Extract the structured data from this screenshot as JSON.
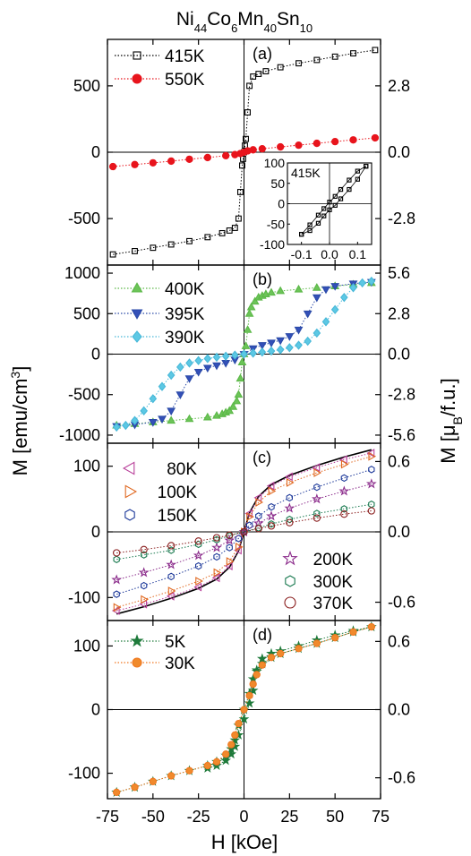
{
  "figure": {
    "title_parts": [
      {
        "t": "Ni",
        "sub": false
      },
      {
        "t": "44",
        "sub": true
      },
      {
        "t": "Co",
        "sub": false
      },
      {
        "t": "6",
        "sub": true
      },
      {
        "t": "Mn",
        "sub": false
      },
      {
        "t": "40",
        "sub": true
      },
      {
        "t": "Sn",
        "sub": false
      },
      {
        "t": "10",
        "sub": true
      }
    ],
    "xlabel": "H [kOe]",
    "ylabel_left": "M [emu/cm",
    "ylabel_left_sup": "3",
    "ylabel_left_end": "]",
    "ylabel_right": "M [μ",
    "ylabel_right_sub": "B",
    "ylabel_right_end": "/f.u.]",
    "xticks": [
      -75,
      -50,
      -25,
      0,
      25,
      50,
      75
    ],
    "xtick_labels": [
      "-75",
      "-50",
      "-25",
      "0",
      "25",
      "50",
      "75"
    ]
  },
  "chart_data": [
    {
      "type": "line",
      "panel_label": "(a)",
      "xlim": [
        -75,
        75
      ],
      "ylim": [
        -850,
        850
      ],
      "left_ticks": [
        -500,
        0,
        500
      ],
      "left_tick_labels": [
        "-500",
        "0",
        "500"
      ],
      "right_ticks": [
        -2.8,
        0.0,
        2.8
      ],
      "right_tick_labels": [
        "-2.8",
        "0.0",
        "2.8"
      ],
      "right_scale": 0.0056,
      "series": [
        {
          "name": "415K",
          "marker": "square",
          "color": "#000000",
          "fill": "none",
          "x": [
            -72,
            -60,
            -50,
            -40,
            -30,
            -20,
            -12,
            -8,
            -5,
            -3,
            -2,
            -1,
            -0.5,
            0,
            0.5,
            1,
            2,
            3,
            5,
            8,
            12,
            20,
            30,
            40,
            50,
            60,
            72
          ],
          "y": [
            -770,
            -745,
            -720,
            -695,
            -670,
            -640,
            -610,
            -590,
            -570,
            -500,
            -300,
            -100,
            -50,
            0,
            50,
            100,
            300,
            500,
            570,
            590,
            610,
            640,
            670,
            695,
            720,
            745,
            770
          ]
        },
        {
          "name": "550K",
          "marker": "circle",
          "color": "#e8141c",
          "fill": "#e8141c",
          "x": [
            -72,
            -60,
            -50,
            -40,
            -30,
            -20,
            -10,
            -5,
            -2,
            0,
            2,
            5,
            10,
            20,
            30,
            40,
            50,
            60,
            72
          ],
          "y": [
            -108,
            -93,
            -80,
            -67,
            -53,
            -40,
            -26,
            -18,
            -10,
            0,
            10,
            18,
            26,
            40,
            53,
            67,
            80,
            93,
            108
          ]
        }
      ],
      "inset": {
        "label": "415K",
        "xlim": [
          -0.15,
          0.15
        ],
        "ylim": [
          -100,
          100
        ],
        "xticks": [
          -0.1,
          0.0,
          0.1
        ],
        "xtick_labels": [
          "-0.1",
          "0.0",
          "0.1"
        ],
        "yticks": [
          -100,
          -50,
          0,
          50,
          100
        ],
        "ytick_labels": [
          "-100",
          "-50",
          "0",
          "50",
          "100"
        ],
        "upper_x": [
          0.13,
          0.1,
          0.07,
          0.04,
          0.02,
          0.0,
          -0.02,
          -0.04,
          -0.07,
          -0.1
        ],
        "upper_y": [
          92,
          80,
          58,
          35,
          18,
          4,
          -12,
          -28,
          -52,
          -75
        ],
        "lower_x": [
          -0.1,
          -0.07,
          -0.04,
          -0.02,
          0.0,
          0.02,
          0.04,
          0.07,
          0.1,
          0.13
        ],
        "lower_y": [
          -75,
          -66,
          -48,
          -30,
          -15,
          -4,
          12,
          35,
          60,
          92
        ]
      }
    },
    {
      "type": "line",
      "panel_label": "(b)",
      "xlim": [
        -75,
        75
      ],
      "ylim": [
        -1100,
        1100
      ],
      "left_ticks": [
        -1000,
        -500,
        0,
        500,
        1000
      ],
      "left_tick_labels": [
        "-1000",
        "-500",
        "0",
        "500",
        "1000"
      ],
      "right_ticks": [
        -5.6,
        -2.8,
        0.0,
        2.8,
        5.6
      ],
      "right_tick_labels": [
        "-5.6",
        "-2.8",
        "0.0",
        "2.8",
        "5.6"
      ],
      "right_scale": 0.0056,
      "series": [
        {
          "name": "400K",
          "marker": "triangle-up",
          "color": "#5cb848",
          "fill": "#6cc458",
          "x": [
            -70,
            -60,
            -50,
            -40,
            -30,
            -20,
            -15,
            -12,
            -10,
            -8,
            -6,
            -4,
            -3,
            -2,
            -1,
            0,
            1,
            2,
            3,
            4,
            6,
            8,
            10,
            12,
            15,
            20,
            30,
            40,
            50,
            60,
            70
          ],
          "y": [
            -880,
            -860,
            -840,
            -820,
            -800,
            -780,
            -760,
            -740,
            -720,
            -700,
            -650,
            -580,
            -500,
            -300,
            -100,
            0,
            100,
            300,
            500,
            580,
            650,
            700,
            720,
            740,
            760,
            780,
            800,
            820,
            840,
            860,
            880
          ]
        },
        {
          "name": "395K",
          "marker": "triangle-down",
          "color": "#2a4aa8",
          "fill": "#3450b8",
          "x": [
            -70,
            -60,
            -50,
            -45,
            -40,
            -35,
            -30,
            -25,
            -20,
            -15,
            -10,
            -5,
            0,
            5,
            10,
            15,
            20,
            25,
            30,
            35,
            40,
            45,
            50,
            60,
            70
          ],
          "y": [
            -890,
            -870,
            -840,
            -800,
            -700,
            -500,
            -300,
            -220,
            -170,
            -140,
            -110,
            -70,
            0,
            70,
            110,
            140,
            170,
            220,
            300,
            500,
            700,
            800,
            840,
            870,
            890
          ]
        },
        {
          "name": "390K",
          "marker": "diamond",
          "color": "#48b8d8",
          "fill": "#5cc8e4",
          "x": [
            -70,
            -65,
            -60,
            -55,
            -50,
            -45,
            -40,
            -35,
            -30,
            -25,
            -20,
            -15,
            -10,
            -5,
            0,
            5,
            10,
            15,
            20,
            25,
            30,
            35,
            40,
            45,
            50,
            55,
            60,
            65,
            70
          ],
          "y": [
            -900,
            -880,
            -820,
            -700,
            -550,
            -400,
            -260,
            -160,
            -110,
            -80,
            -55,
            -38,
            -25,
            -12,
            0,
            12,
            25,
            38,
            55,
            80,
            110,
            160,
            260,
            400,
            550,
            700,
            820,
            880,
            900
          ]
        }
      ]
    },
    {
      "type": "line",
      "panel_label": "(c)",
      "xlim": [
        -75,
        75
      ],
      "ylim": [
        -135,
        135
      ],
      "left_ticks": [
        -100,
        0,
        100
      ],
      "left_tick_labels": [
        "-100",
        "0",
        "100"
      ],
      "right_ticks": [
        -0.6,
        0.0,
        0.6
      ],
      "right_tick_labels": [
        "-0.6",
        "0.0",
        "0.6"
      ],
      "right_scale": 0.0056,
      "series": [
        {
          "name": "80K",
          "marker": "triangle-left",
          "color": "#b8409a",
          "fill": "none",
          "x": [
            -70,
            -55,
            -40,
            -25,
            -15,
            -8,
            -3,
            0,
            3,
            8,
            15,
            25,
            40,
            55,
            70
          ],
          "y": [
            -120,
            -110,
            -98,
            -84,
            -70,
            -52,
            -28,
            0,
            28,
            52,
            70,
            84,
            98,
            110,
            120
          ]
        },
        {
          "name": "100K",
          "marker": "triangle-right",
          "color": "#e06820",
          "fill": "none",
          "x": [
            -70,
            -55,
            -40,
            -25,
            -15,
            -8,
            -3,
            0,
            3,
            8,
            15,
            25,
            40,
            55,
            70
          ],
          "y": [
            -115,
            -103,
            -90,
            -75,
            -62,
            -45,
            -23,
            0,
            23,
            45,
            62,
            75,
            90,
            103,
            115
          ]
        },
        {
          "name": "150K",
          "marker": "hexagon",
          "color": "#1e3a9a",
          "fill": "none",
          "x": [
            -70,
            -55,
            -40,
            -25,
            -15,
            -8,
            -3,
            0,
            3,
            8,
            15,
            25,
            40,
            55,
            70
          ],
          "y": [
            -95,
            -82,
            -68,
            -52,
            -38,
            -24,
            -10,
            0,
            10,
            24,
            38,
            52,
            68,
            82,
            95
          ]
        },
        {
          "name": "200K",
          "marker": "star",
          "color": "#8a2a8a",
          "fill": "none",
          "x": [
            -70,
            -55,
            -40,
            -25,
            -15,
            -8,
            0,
            8,
            15,
            25,
            40,
            55,
            70
          ],
          "y": [
            -73,
            -62,
            -50,
            -36,
            -24,
            -13,
            0,
            13,
            24,
            36,
            50,
            62,
            73
          ]
        },
        {
          "name": "300K",
          "marker": "hexagon",
          "color": "#1a7a50",
          "fill": "none",
          "x": [
            -70,
            -55,
            -40,
            -25,
            -15,
            -8,
            0,
            8,
            15,
            25,
            40,
            55,
            70
          ],
          "y": [
            -42,
            -35,
            -28,
            -19,
            -12,
            -6,
            0,
            6,
            12,
            19,
            28,
            35,
            42
          ]
        },
        {
          "name": "370K",
          "marker": "circle",
          "color": "#8a1e1e",
          "fill": "none",
          "x": [
            -70,
            -55,
            -40,
            -25,
            -15,
            -8,
            0,
            8,
            15,
            25,
            40,
            55,
            70
          ],
          "y": [
            -32,
            -27,
            -21,
            -14,
            -9,
            -5,
            0,
            5,
            9,
            14,
            21,
            27,
            32
          ]
        }
      ],
      "fit_curve": {
        "x": [
          -70,
          -55,
          -40,
          -25,
          -15,
          -8,
          -3,
          0,
          3,
          8,
          15,
          25,
          40,
          55,
          70
        ],
        "y": [
          -125,
          -114,
          -101,
          -86,
          -72,
          -54,
          -29,
          0,
          29,
          54,
          72,
          86,
          101,
          114,
          125
        ]
      }
    },
    {
      "type": "line",
      "panel_label": "(d)",
      "xlim": [
        -75,
        75
      ],
      "ylim": [
        -140,
        140
      ],
      "left_ticks": [
        -100,
        0,
        100
      ],
      "left_tick_labels": [
        "-100",
        "0",
        "100"
      ],
      "right_ticks": [
        -0.6,
        0.0,
        0.6
      ],
      "right_tick_labels": [
        "-0.6",
        "0.0",
        "0.6"
      ],
      "right_scale": 0.0056,
      "series": [
        {
          "name": "5K",
          "marker": "star-filled",
          "color": "#1e7a3a",
          "fill": "#1e7a3a",
          "x": [
            -70,
            -60,
            -50,
            -40,
            -30,
            -20,
            -15,
            -10,
            -7,
            -5,
            -3,
            0,
            3,
            5,
            7,
            10,
            15,
            20,
            30,
            40,
            50,
            60,
            70,
            60,
            50,
            40,
            30,
            20,
            15,
            10,
            7,
            5,
            3,
            0,
            -3,
            -5,
            -7,
            -10,
            -15,
            -20
          ],
          "y": [
            -130,
            -122,
            -113,
            -104,
            -96,
            -88,
            -82,
            -72,
            -62,
            -48,
            -25,
            0,
            25,
            48,
            62,
            72,
            82,
            88,
            96,
            104,
            113,
            122,
            130,
            124,
            117,
            109,
            100,
            92,
            88,
            80,
            60,
            30,
            10,
            -15,
            -40,
            -58,
            -70,
            -80,
            -88,
            -92
          ]
        },
        {
          "name": "30K",
          "marker": "circle",
          "color": "#f07820",
          "fill": "#f08a2c",
          "x": [
            -70,
            -60,
            -50,
            -40,
            -30,
            -20,
            -15,
            -10,
            -7,
            -5,
            -3,
            0,
            3,
            5,
            7,
            10,
            15,
            20,
            30,
            40,
            50,
            60,
            70
          ],
          "y": [
            -130,
            -122,
            -113,
            -104,
            -96,
            -88,
            -82,
            -70,
            -55,
            -40,
            -22,
            0,
            22,
            40,
            55,
            70,
            82,
            88,
            96,
            104,
            113,
            122,
            130
          ]
        }
      ]
    }
  ]
}
